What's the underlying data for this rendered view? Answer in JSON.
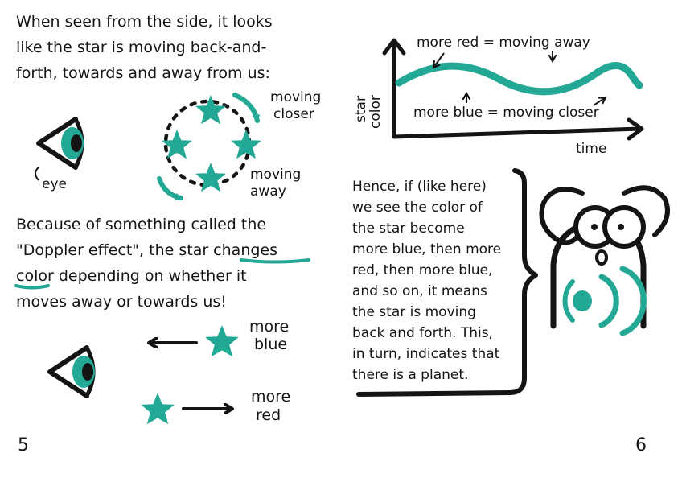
{
  "colors": {
    "ink": "#141414",
    "teal": "#22a894",
    "paper": "#ffffff"
  },
  "left_page": {
    "intro": [
      "When seen from the side, it looks",
      "like the star is moving back-and-",
      "forth, towards and away from us:"
    ],
    "moving_closer": [
      "moving",
      "closer"
    ],
    "moving_away": [
      "moving",
      "away"
    ],
    "eye_label": "eye",
    "doppler": [
      "Because of something called the",
      "\"Doppler effect\", the star changes",
      "color depending on whether it",
      "moves away or towards us!"
    ],
    "more_blue": [
      "more",
      "blue"
    ],
    "more_red": [
      "more",
      "red"
    ],
    "page_number": "5"
  },
  "right_page": {
    "graph": {
      "y_axis_label": [
        "star",
        "color"
      ],
      "x_axis_label": "time",
      "top_note": "more red = moving away",
      "bottom_note": "more blue = moving closer"
    },
    "conclusion": [
      "Hence, if (like here)",
      "we see the color of",
      "the star become",
      "more blue, then more",
      "red, then more blue,",
      "and so on, it means",
      "the star is moving",
      "back and forth. This,",
      "in turn, indicates that",
      "there is a planet."
    ],
    "page_number": "6"
  }
}
